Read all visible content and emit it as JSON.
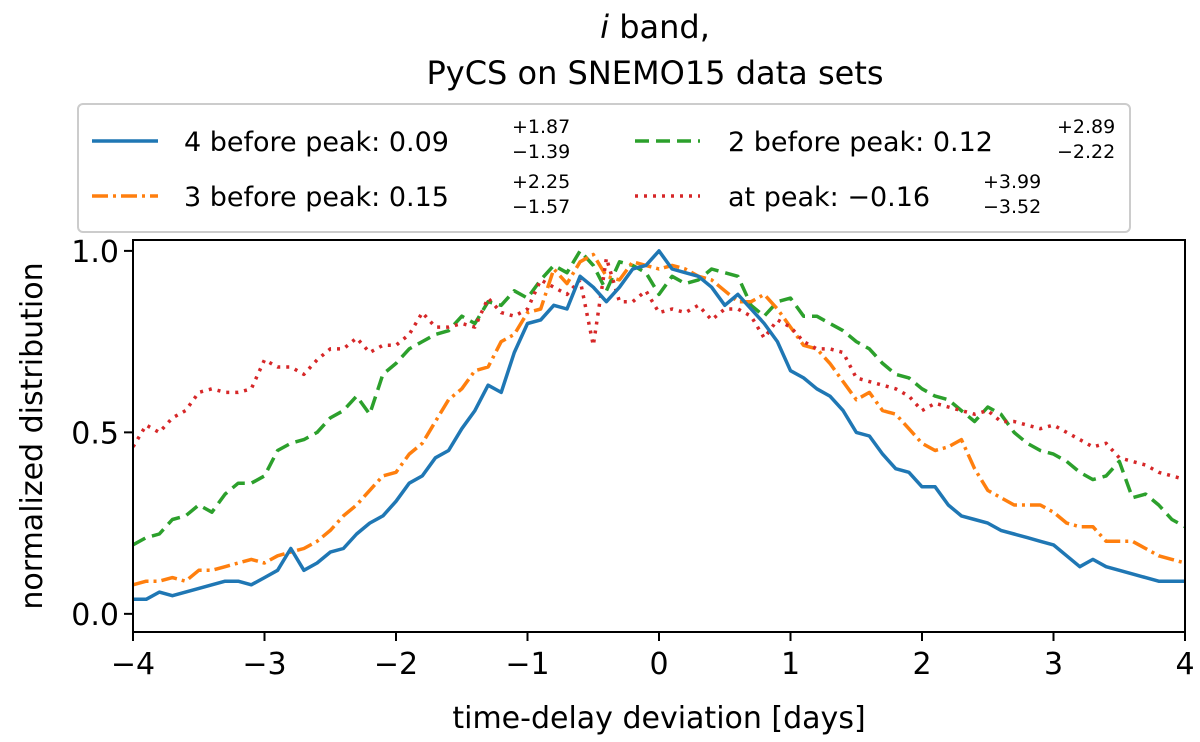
{
  "chart_data": {
    "type": "line",
    "title_line1_italic": "i",
    "title_line1_rest": " band,",
    "title_line2": "PyCS on SNEMO15 data sets",
    "xlabel": "time-delay deviation [days]",
    "ylabel": "normalized distribution",
    "xlim": [
      -4,
      4
    ],
    "ylim": [
      -0.05,
      1.03
    ],
    "xticks": [
      -4,
      -3,
      -2,
      -1,
      0,
      1,
      2,
      3,
      4
    ],
    "xtick_labels": [
      "−4",
      "−3",
      "−2",
      "−1",
      "0",
      "1",
      "2",
      "3",
      "4"
    ],
    "yticks": [
      0.0,
      0.5,
      1.0
    ],
    "ytick_labels": [
      "0.0",
      "0.5",
      "1.0"
    ],
    "legend_position": "above plot",
    "x": [
      -4.0,
      -3.9,
      -3.8,
      -3.7,
      -3.6,
      -3.5,
      -3.4,
      -3.3,
      -3.2,
      -3.1,
      -3.0,
      -2.9,
      -2.8,
      -2.7,
      -2.6,
      -2.5,
      -2.4,
      -2.3,
      -2.2,
      -2.1,
      -2.0,
      -1.9,
      -1.8,
      -1.7,
      -1.6,
      -1.5,
      -1.4,
      -1.3,
      -1.2,
      -1.1,
      -1.0,
      -0.9,
      -0.8,
      -0.7,
      -0.6,
      -0.5,
      -0.4,
      -0.3,
      -0.2,
      -0.1,
      0.0,
      0.1,
      0.2,
      0.3,
      0.4,
      0.5,
      0.6,
      0.7,
      0.8,
      0.9,
      1.0,
      1.1,
      1.2,
      1.3,
      1.4,
      1.5,
      1.6,
      1.7,
      1.8,
      1.9,
      2.0,
      2.1,
      2.2,
      2.3,
      2.4,
      2.5,
      2.6,
      2.7,
      2.8,
      2.9,
      3.0,
      3.1,
      3.2,
      3.3,
      3.4,
      3.5,
      3.6,
      3.7,
      3.8,
      3.9,
      4.0
    ],
    "series": [
      {
        "name": "4 before peak",
        "legend_value": "0.09",
        "legend_sup": "+1.87",
        "legend_sub": "−1.39",
        "color": "#1f77b4",
        "dash": "",
        "values": [
          0.04,
          0.04,
          0.06,
          0.05,
          0.06,
          0.07,
          0.08,
          0.09,
          0.09,
          0.08,
          0.1,
          0.12,
          0.18,
          0.12,
          0.14,
          0.17,
          0.18,
          0.22,
          0.25,
          0.27,
          0.31,
          0.36,
          0.38,
          0.43,
          0.45,
          0.51,
          0.56,
          0.63,
          0.61,
          0.72,
          0.8,
          0.81,
          0.85,
          0.84,
          0.93,
          0.9,
          0.86,
          0.9,
          0.95,
          0.96,
          1.0,
          0.95,
          0.94,
          0.93,
          0.9,
          0.85,
          0.88,
          0.84,
          0.8,
          0.75,
          0.67,
          0.65,
          0.62,
          0.6,
          0.56,
          0.5,
          0.49,
          0.44,
          0.4,
          0.39,
          0.35,
          0.35,
          0.3,
          0.27,
          0.26,
          0.25,
          0.23,
          0.22,
          0.21,
          0.2,
          0.19,
          0.16,
          0.13,
          0.15,
          0.13,
          0.12,
          0.11,
          0.1,
          0.09,
          0.09,
          0.09
        ]
      },
      {
        "name": "2 before peak",
        "legend_value": "0.12",
        "legend_sup": "+2.89",
        "legend_sub": "−2.22",
        "color": "#2ca02c",
        "dash": "14,7",
        "values": [
          0.19,
          0.21,
          0.22,
          0.26,
          0.27,
          0.3,
          0.28,
          0.33,
          0.36,
          0.36,
          0.38,
          0.45,
          0.47,
          0.48,
          0.5,
          0.54,
          0.56,
          0.6,
          0.55,
          0.66,
          0.69,
          0.73,
          0.75,
          0.77,
          0.78,
          0.82,
          0.8,
          0.86,
          0.85,
          0.89,
          0.87,
          0.92,
          0.96,
          0.94,
          1.0,
          0.96,
          0.89,
          0.97,
          0.96,
          0.94,
          0.88,
          0.93,
          0.91,
          0.92,
          0.95,
          0.94,
          0.93,
          0.85,
          0.82,
          0.86,
          0.87,
          0.82,
          0.82,
          0.8,
          0.78,
          0.75,
          0.73,
          0.69,
          0.66,
          0.65,
          0.62,
          0.6,
          0.59,
          0.56,
          0.53,
          0.57,
          0.55,
          0.5,
          0.47,
          0.45,
          0.44,
          0.42,
          0.39,
          0.37,
          0.38,
          0.42,
          0.32,
          0.33,
          0.3,
          0.26,
          0.24
        ]
      },
      {
        "name": "3 before peak",
        "legend_value": "0.15",
        "legend_sup": "+2.25",
        "legend_sub": "−1.57",
        "color": "#ff7f0e",
        "dash": "16,5,3,5",
        "values": [
          0.08,
          0.09,
          0.09,
          0.1,
          0.09,
          0.12,
          0.12,
          0.13,
          0.14,
          0.15,
          0.14,
          0.16,
          0.17,
          0.18,
          0.2,
          0.23,
          0.27,
          0.3,
          0.34,
          0.38,
          0.39,
          0.44,
          0.47,
          0.53,
          0.59,
          0.62,
          0.67,
          0.68,
          0.75,
          0.77,
          0.83,
          0.84,
          0.95,
          0.91,
          0.97,
          0.99,
          0.93,
          0.92,
          0.97,
          0.96,
          0.95,
          0.96,
          0.95,
          0.93,
          0.92,
          0.89,
          0.86,
          0.86,
          0.88,
          0.84,
          0.79,
          0.74,
          0.73,
          0.69,
          0.64,
          0.59,
          0.61,
          0.56,
          0.55,
          0.51,
          0.47,
          0.45,
          0.46,
          0.48,
          0.4,
          0.34,
          0.32,
          0.3,
          0.3,
          0.3,
          0.28,
          0.25,
          0.24,
          0.24,
          0.2,
          0.2,
          0.2,
          0.18,
          0.16,
          0.15,
          0.14
        ]
      },
      {
        "name": "at peak",
        "legend_value": "−0.16",
        "legend_sup": "+3.99",
        "legend_sub": "−3.52",
        "color": "#d62728",
        "dash": "3,6",
        "values": [
          0.46,
          0.52,
          0.5,
          0.54,
          0.56,
          0.61,
          0.62,
          0.61,
          0.61,
          0.62,
          0.7,
          0.68,
          0.68,
          0.66,
          0.7,
          0.73,
          0.73,
          0.76,
          0.72,
          0.74,
          0.74,
          0.77,
          0.83,
          0.79,
          0.79,
          0.8,
          0.79,
          0.87,
          0.83,
          0.82,
          0.84,
          0.92,
          0.9,
          0.88,
          0.92,
          0.74,
          0.98,
          0.86,
          0.86,
          0.89,
          0.83,
          0.84,
          0.83,
          0.85,
          0.81,
          0.84,
          0.84,
          0.82,
          0.76,
          0.81,
          0.79,
          0.75,
          0.73,
          0.73,
          0.72,
          0.65,
          0.64,
          0.63,
          0.62,
          0.6,
          0.56,
          0.58,
          0.57,
          0.56,
          0.55,
          0.56,
          0.53,
          0.53,
          0.52,
          0.51,
          0.52,
          0.5,
          0.48,
          0.46,
          0.47,
          0.43,
          0.42,
          0.41,
          0.39,
          0.38,
          0.37
        ]
      }
    ]
  }
}
